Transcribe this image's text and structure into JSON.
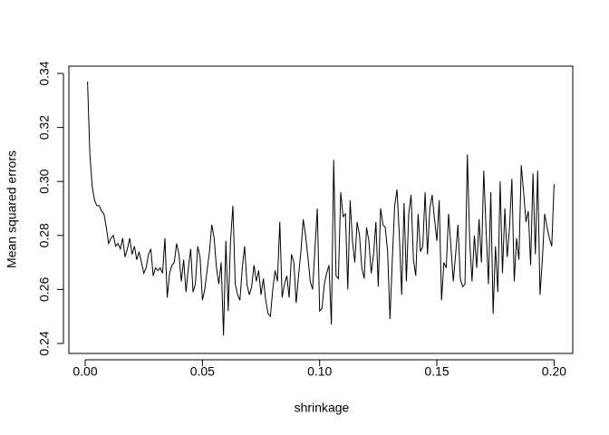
{
  "chart_data": {
    "type": "line",
    "x_label": "shrinkage",
    "y_label": "Mean squared errors",
    "color": "#000000",
    "x": [
      0.001,
      0.002,
      0.003,
      0.004,
      0.005,
      0.006,
      0.007,
      0.008,
      0.009,
      0.01,
      0.011,
      0.012,
      0.013,
      0.014,
      0.015,
      0.016,
      0.017,
      0.018,
      0.019,
      0.02,
      0.021,
      0.022,
      0.023,
      0.024,
      0.025,
      0.026,
      0.027,
      0.028,
      0.029,
      0.03,
      0.031,
      0.032,
      0.033,
      0.034,
      0.035,
      0.036,
      0.037,
      0.038,
      0.039,
      0.04,
      0.041,
      0.042,
      0.043,
      0.044,
      0.045,
      0.046,
      0.047,
      0.048,
      0.049,
      0.05,
      0.051,
      0.052,
      0.053,
      0.054,
      0.055,
      0.056,
      0.057,
      0.058,
      0.059,
      0.06,
      0.061,
      0.062,
      0.063,
      0.064,
      0.065,
      0.066,
      0.067,
      0.068,
      0.069,
      0.07,
      0.071,
      0.072,
      0.073,
      0.074,
      0.075,
      0.076,
      0.077,
      0.078,
      0.079,
      0.08,
      0.081,
      0.082,
      0.083,
      0.084,
      0.085,
      0.086,
      0.087,
      0.088,
      0.089,
      0.09,
      0.091,
      0.092,
      0.093,
      0.094,
      0.095,
      0.096,
      0.097,
      0.098,
      0.099,
      0.1,
      0.101,
      0.102,
      0.103,
      0.104,
      0.105,
      0.106,
      0.107,
      0.108,
      0.109,
      0.11,
      0.111,
      0.112,
      0.113,
      0.114,
      0.115,
      0.116,
      0.117,
      0.118,
      0.119,
      0.12,
      0.121,
      0.122,
      0.123,
      0.124,
      0.125,
      0.126,
      0.127,
      0.128,
      0.129,
      0.13,
      0.131,
      0.132,
      0.133,
      0.134,
      0.135,
      0.136,
      0.137,
      0.138,
      0.139,
      0.14,
      0.141,
      0.142,
      0.143,
      0.144,
      0.145,
      0.146,
      0.147,
      0.148,
      0.149,
      0.15,
      0.151,
      0.152,
      0.153,
      0.154,
      0.155,
      0.156,
      0.157,
      0.158,
      0.159,
      0.16,
      0.161,
      0.162,
      0.163,
      0.164,
      0.165,
      0.166,
      0.167,
      0.168,
      0.169,
      0.17,
      0.171,
      0.172,
      0.173,
      0.174,
      0.175,
      0.176,
      0.177,
      0.178,
      0.179,
      0.18,
      0.181,
      0.182,
      0.183,
      0.184,
      0.185,
      0.186,
      0.187,
      0.188,
      0.189,
      0.19,
      0.191,
      0.192,
      0.193,
      0.194,
      0.195,
      0.196,
      0.197,
      0.198,
      0.199,
      0.2
    ],
    "values": [
      0.337,
      0.31,
      0.298,
      0.293,
      0.291,
      0.291,
      0.289,
      0.288,
      0.283,
      0.277,
      0.279,
      0.28,
      0.276,
      0.277,
      0.275,
      0.279,
      0.272,
      0.275,
      0.279,
      0.273,
      0.276,
      0.271,
      0.274,
      0.27,
      0.266,
      0.268,
      0.273,
      0.275,
      0.265,
      0.268,
      0.267,
      0.268,
      0.266,
      0.279,
      0.257,
      0.266,
      0.269,
      0.27,
      0.277,
      0.273,
      0.263,
      0.271,
      0.259,
      0.268,
      0.275,
      0.259,
      0.262,
      0.276,
      0.272,
      0.256,
      0.26,
      0.267,
      0.274,
      0.284,
      0.279,
      0.268,
      0.262,
      0.27,
      0.243,
      0.278,
      0.252,
      0.278,
      0.291,
      0.262,
      0.258,
      0.256,
      0.268,
      0.276,
      0.262,
      0.258,
      0.261,
      0.269,
      0.263,
      0.267,
      0.258,
      0.264,
      0.256,
      0.251,
      0.25,
      0.26,
      0.267,
      0.263,
      0.285,
      0.257,
      0.262,
      0.265,
      0.257,
      0.273,
      0.27,
      0.255,
      0.265,
      0.274,
      0.286,
      0.28,
      0.272,
      0.263,
      0.26,
      0.275,
      0.29,
      0.252,
      0.253,
      0.262,
      0.266,
      0.269,
      0.247,
      0.308,
      0.265,
      0.264,
      0.296,
      0.287,
      0.288,
      0.26,
      0.293,
      0.278,
      0.27,
      0.285,
      0.28,
      0.268,
      0.264,
      0.283,
      0.278,
      0.266,
      0.273,
      0.285,
      0.261,
      0.29,
      0.284,
      0.283,
      0.274,
      0.249,
      0.271,
      0.291,
      0.297,
      0.28,
      0.258,
      0.292,
      0.263,
      0.288,
      0.295,
      0.271,
      0.265,
      0.288,
      0.274,
      0.276,
      0.296,
      0.273,
      0.29,
      0.295,
      0.286,
      0.278,
      0.293,
      0.256,
      0.27,
      0.268,
      0.288,
      0.276,
      0.263,
      0.273,
      0.284,
      0.264,
      0.261,
      0.262,
      0.31,
      0.278,
      0.263,
      0.28,
      0.268,
      0.286,
      0.27,
      0.304,
      0.282,
      0.262,
      0.296,
      0.251,
      0.276,
      0.259,
      0.3,
      0.266,
      0.29,
      0.272,
      0.283,
      0.301,
      0.263,
      0.279,
      0.271,
      0.306,
      0.296,
      0.285,
      0.289,
      0.269,
      0.303,
      0.273,
      0.304,
      0.258,
      0.271,
      0.288,
      0.283,
      0.279,
      0.276,
      0.299
    ],
    "xlim": [
      -0.00696,
      0.20796
    ],
    "xticks": [
      {
        "value": 0,
        "label": "0.00"
      },
      0.05,
      {
        "value": 0.1,
        "label": "0.10"
      },
      0.15,
      {
        "value": 0.2,
        "label": "0.20"
      }
    ],
    "ylim": [
      0.2363,
      0.3427
    ],
    "yticks": [
      0.24,
      0.26,
      0.28,
      {
        "value": 0.3,
        "label": "0.30"
      },
      0.32,
      0.34
    ],
    "grid": false
  }
}
